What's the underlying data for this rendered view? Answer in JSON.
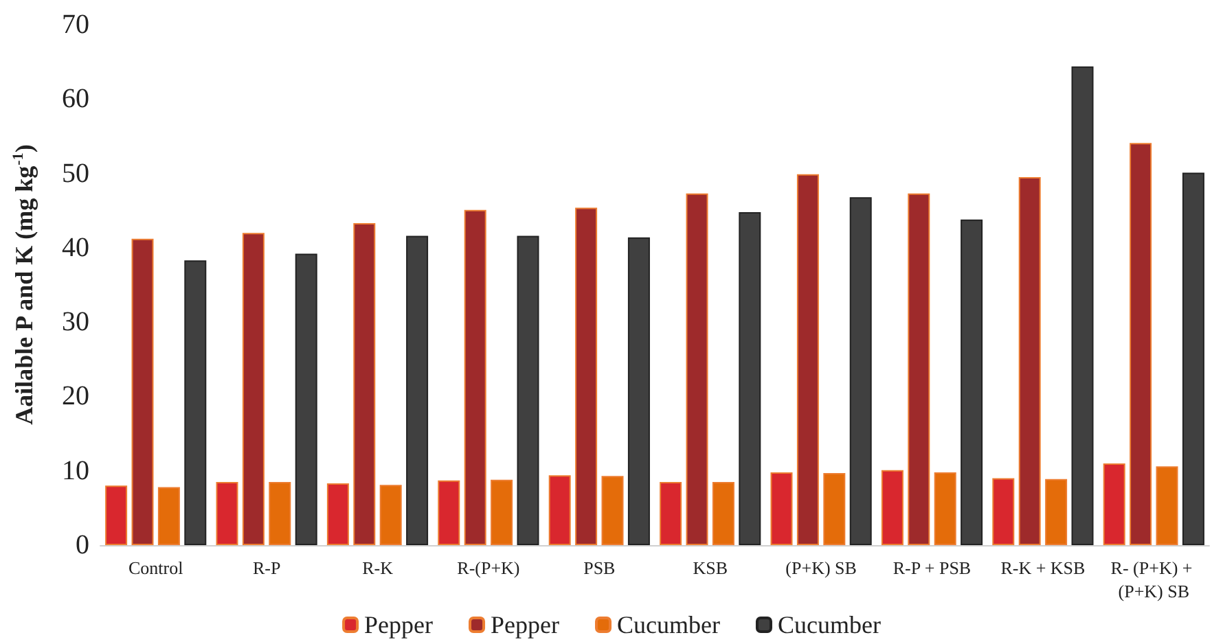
{
  "chart_data": {
    "type": "bar",
    "ylabel": "Aailable P and K (mg kg$^{-1}$)",
    "categories": [
      "Control",
      "R-P",
      "R-K",
      "R-(P+K)",
      "PSB",
      "KSB",
      "(P+K) SB",
      "R-P + PSB",
      "R-K + KSB",
      "R- (P+K) + (P+K) SB"
    ],
    "series": [
      {
        "name": "Pepper",
        "color": "#d9272e",
        "values": [
          8.0,
          8.5,
          8.3,
          8.7,
          9.4,
          8.5,
          9.8,
          10.1,
          9.0,
          11.0
        ]
      },
      {
        "name": "Pepper",
        "color": "#9e2a2b",
        "values": [
          41.2,
          42.0,
          43.3,
          45.1,
          45.4,
          47.3,
          49.9,
          47.3,
          49.5,
          54.1
        ]
      },
      {
        "name": "Cucumber",
        "color": "#e46c0a",
        "values": [
          7.8,
          8.5,
          8.1,
          8.8,
          9.3,
          8.5,
          9.7,
          9.8,
          8.9,
          10.6
        ]
      },
      {
        "name": "Cucumber",
        "color": "#404040",
        "values": [
          38.3,
          39.2,
          41.6,
          41.6,
          41.4,
          44.8,
          46.8,
          43.8,
          64.4,
          50.1
        ]
      }
    ],
    "ylim": [
      0,
      70
    ],
    "yticks": [
      0,
      10,
      20,
      30,
      40,
      50,
      60,
      70
    ],
    "grid": false,
    "legend": "bottom"
  }
}
